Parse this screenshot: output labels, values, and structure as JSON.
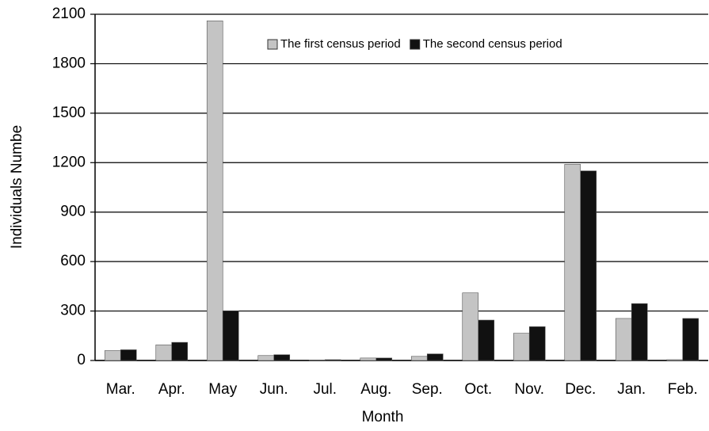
{
  "chart_data": {
    "type": "bar",
    "x_label": "Month",
    "y_label": "Individuals Numbe",
    "categories": [
      "Mar.",
      "Apr.",
      "May",
      "Jun.",
      "Jul.",
      "Aug.",
      "Sep.",
      "Oct.",
      "Nov.",
      "Dec.",
      "Jan.",
      "Feb."
    ],
    "series": [
      {
        "name": "The first census period",
        "color": "#c4c4c4",
        "values": [
          60,
          95,
          2060,
          30,
          2,
          15,
          25,
          410,
          165,
          1190,
          255,
          5
        ]
      },
      {
        "name": "The second census period",
        "color": "#111111",
        "values": [
          65,
          110,
          300,
          35,
          5,
          15,
          40,
          245,
          205,
          1150,
          345,
          255
        ]
      }
    ],
    "ylim": [
      0,
      2100
    ],
    "yticks": [
      0,
      300,
      600,
      900,
      1200,
      1500,
      1800,
      2100
    ],
    "grid": true,
    "legend": "top-right"
  }
}
